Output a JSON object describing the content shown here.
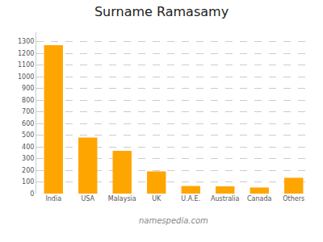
{
  "chart_data": {
    "type": "bar",
    "title": "Surname Ramasamy",
    "categories": [
      "India",
      "USA",
      "Malaysia",
      "UK",
      "U.A.E.",
      "Australia",
      "Canada",
      "Others"
    ],
    "values": [
      1270,
      480,
      365,
      190,
      65,
      62,
      52,
      135
    ],
    "color": "#FFA500",
    "ylim": [
      0,
      1380
    ],
    "yticks": [
      0,
      100,
      200,
      300,
      400,
      500,
      600,
      700,
      800,
      900,
      1000,
      1100,
      1200,
      1300
    ],
    "grid": true,
    "annotations": [
      "namespedia.com"
    ]
  }
}
